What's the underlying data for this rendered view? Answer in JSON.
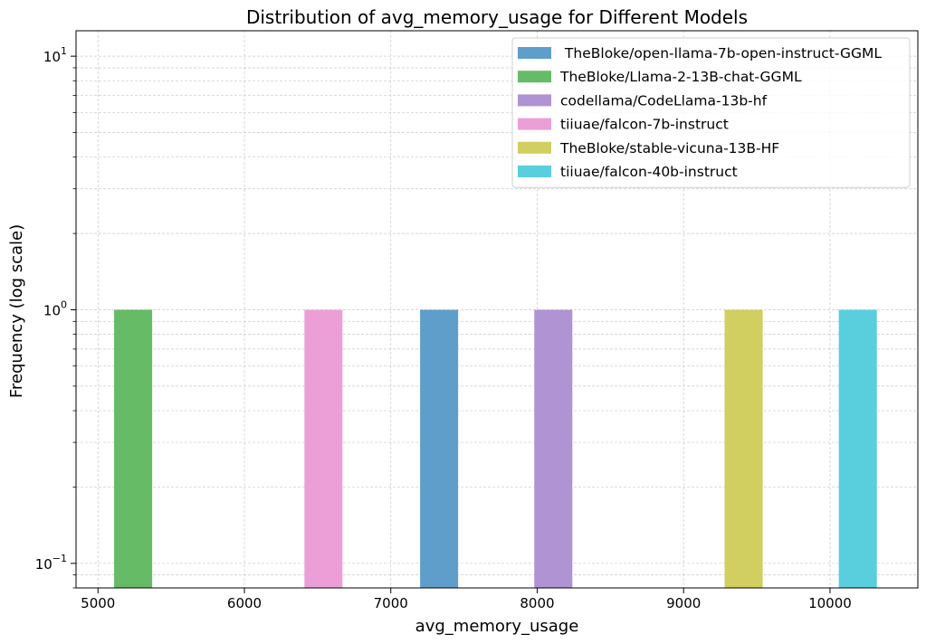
{
  "chart_data": {
    "type": "bar",
    "title": "Distribution of avg_memory_usage for Different Models",
    "xlabel": "avg_memory_usage",
    "ylabel": "Frequency (log scale)",
    "xlim": [
      4850,
      10600
    ],
    "ylim": [
      0.08,
      12.6
    ],
    "yscale": "log",
    "grid": true,
    "legend_position": "top-right",
    "x_ticks": [
      5000,
      6000,
      7000,
      8000,
      9000,
      10000
    ],
    "y_ticks": [
      {
        "value": 0.1,
        "base": "10",
        "exp": "−1"
      },
      {
        "value": 1,
        "base": "10",
        "exp": "0"
      },
      {
        "value": 10,
        "base": "10",
        "exp": "1"
      }
    ],
    "series": [
      {
        "name": " TheBloke/open-llama-7b-open-instruct-GGML",
        "color": "#5f9ecb",
        "bin": [
          7200,
          7460
        ],
        "value": 1
      },
      {
        "name": "TheBloke/Llama-2-13B-chat-GGML",
        "color": "#66bc66",
        "bin": [
          5110,
          5370
        ],
        "value": 1
      },
      {
        "name": "codellama/CodeLlama-13b-hf",
        "color": "#b093d2",
        "bin": [
          7980,
          8240
        ],
        "value": 1
      },
      {
        "name": "tiiuae/falcon-7b-instruct",
        "color": "#ec9fd6",
        "bin": [
          6410,
          6670
        ],
        "value": 1
      },
      {
        "name": "TheBloke/stable-vicuna-13B-HF",
        "color": "#d0cf5f",
        "bin": [
          9280,
          9540
        ],
        "value": 1
      },
      {
        "name": "tiiuae/falcon-40b-instruct",
        "color": "#59cfde",
        "bin": [
          10060,
          10320
        ],
        "value": 1
      }
    ]
  }
}
